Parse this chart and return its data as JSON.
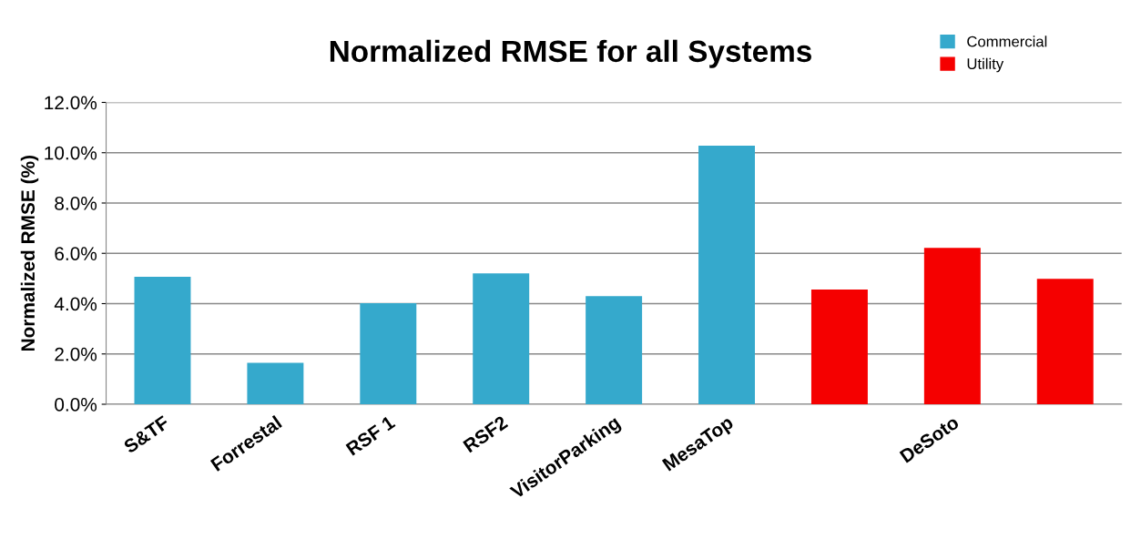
{
  "chart_data": {
    "type": "bar",
    "title": "Normalized RMSE for all Systems",
    "ylabel": "Normalized RMSE (%)",
    "categories": [
      "S&TF",
      "Forrestal",
      "RSF 1",
      "RSF2",
      "VisitorParking",
      "MesaTop",
      null,
      "DeSoto",
      null
    ],
    "series": [
      {
        "name": "Commercial",
        "color": "#35a9cc",
        "values": [
          5.07,
          1.65,
          4.02,
          5.2,
          4.3,
          10.28,
          null,
          null,
          null
        ]
      },
      {
        "name": "Utility",
        "color": "#f50000",
        "values": [
          null,
          null,
          null,
          null,
          null,
          null,
          4.56,
          6.22,
          4.99
        ]
      }
    ],
    "ylim": [
      0,
      12
    ],
    "yticks": [
      {
        "value": 0,
        "label": "0.0%"
      },
      {
        "value": 2,
        "label": "2.0%"
      },
      {
        "value": 4,
        "label": "4.0%"
      },
      {
        "value": 6,
        "label": "6.0%"
      },
      {
        "value": 8,
        "label": "8.0%"
      },
      {
        "value": 10,
        "label": "10.0%"
      },
      {
        "value": 12,
        "label": "12.0%"
      }
    ],
    "grid": "y",
    "legend": "top right"
  }
}
